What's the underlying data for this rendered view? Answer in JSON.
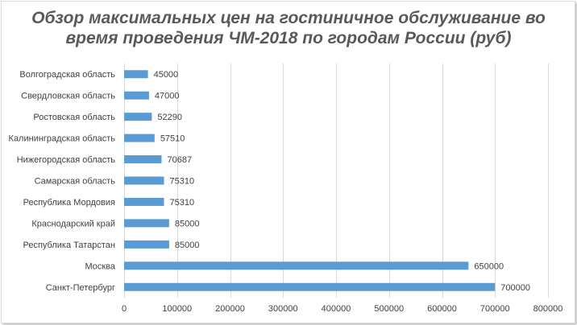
{
  "chart_data": {
    "type": "bar",
    "orientation": "horizontal",
    "title_line1": "Обзор максимальных цен на гостиничное обслуживание во",
    "title_line2": "время проведения ЧМ-2018 по городам России (руб)",
    "categories": [
      "Волгоградская область",
      "Свердловская область",
      "Ростовская область",
      "Калининградская область",
      "Нижегородская область",
      "Самарская область",
      "Республика Мордовия",
      "Краснодарский край",
      "Республика Татарстан",
      "Москва",
      "Санкт-Петербург"
    ],
    "values": [
      45000,
      47000,
      52290,
      57510,
      70687,
      75310,
      75310,
      85000,
      85000,
      650000,
      700000
    ],
    "xlim": [
      0,
      800000
    ],
    "ticks": [
      0,
      100000,
      200000,
      300000,
      400000,
      500000,
      600000,
      700000,
      800000
    ],
    "grid": true,
    "data_labels": true,
    "colors": {
      "bar": "#5b9bd5",
      "grid": "#d9d9d9",
      "text": "#404040",
      "title": "#595959"
    }
  }
}
